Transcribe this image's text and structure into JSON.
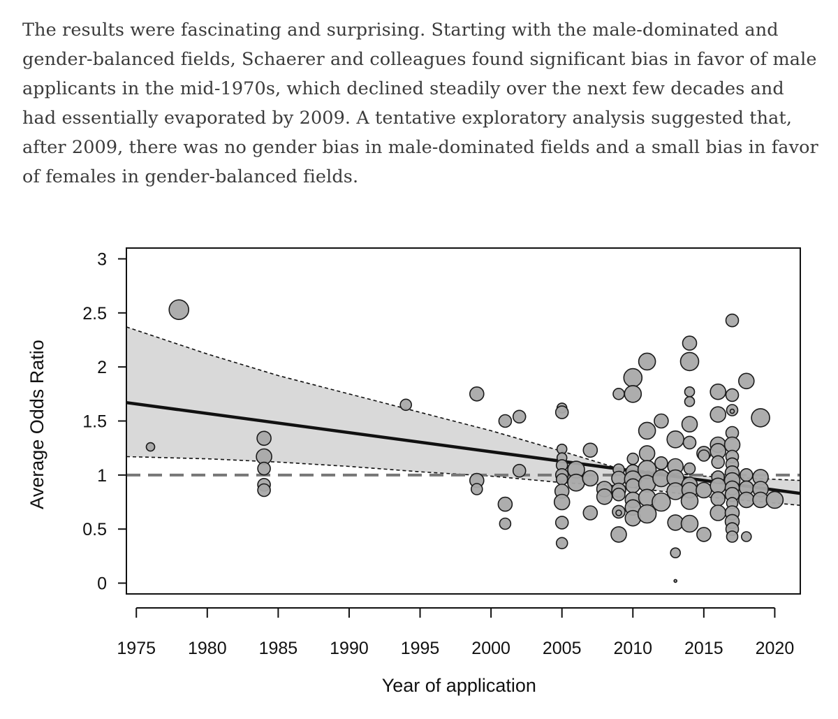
{
  "article": {
    "paragraph": "The results were fascinating and surprising. Starting with the male-dominated and gender-balanced fields, Schaerer and colleagues found significant bias in favor of male applicants in the mid-1970s, which declined steadily over the next few decades and had essentially evaporated by 2009. A tentative exploratory analysis suggested that, after 2009, there was no gender bias in male-dominated fields and a small bias in favor of females in gender-balanced fields."
  },
  "chart_data": {
    "type": "scatter",
    "xlabel": "Year of application",
    "ylabel": "Average Odds Ratio",
    "xlim": [
      1974.3,
      2021.8
    ],
    "ylim": [
      -0.1,
      3.1
    ],
    "x_ticks": [
      1975,
      1980,
      1985,
      1990,
      1995,
      2000,
      2005,
      2010,
      2015,
      2020
    ],
    "y_ticks": [
      0,
      0.5,
      1,
      1.5,
      2,
      2.5,
      3
    ],
    "y_tick_labels": [
      "0",
      "0.5",
      "1",
      "1.5",
      "2",
      "2.5",
      "3"
    ],
    "reference_line_y": 1,
    "fit_line": {
      "x": [
        1974.3,
        2021.8
      ],
      "y": [
        1.67,
        0.83
      ]
    },
    "ci_upper": {
      "x": [
        1974.3,
        1980,
        1985,
        1990,
        1995,
        2000,
        2005,
        2009,
        2015,
        2021.8
      ],
      "y": [
        2.37,
        2.12,
        1.92,
        1.75,
        1.58,
        1.41,
        1.22,
        1.06,
        0.99,
        0.95
      ]
    },
    "ci_lower": {
      "x": [
        1974.3,
        1980,
        1985,
        1990,
        1995,
        2000,
        2005,
        2009,
        2015,
        2021.8
      ],
      "y": [
        1.17,
        1.15,
        1.12,
        1.08,
        1.03,
        0.99,
        0.93,
        0.9,
        0.8,
        0.72
      ]
    },
    "colors": {
      "point_fill": "#a9a9a9",
      "point_stroke": "#1a1a1a",
      "band_fill": "#d9d9d9",
      "fit_line": "#111111",
      "ref_line": "#777777"
    },
    "points": [
      {
        "x": 1976,
        "y": 1.26,
        "size": 6
      },
      {
        "x": 1978,
        "y": 2.53,
        "size": 14
      },
      {
        "x": 1984,
        "y": 1.34,
        "size": 10
      },
      {
        "x": 1984,
        "y": 1.17,
        "size": 11
      },
      {
        "x": 1984,
        "y": 1.06,
        "size": 9
      },
      {
        "x": 1984,
        "y": 0.91,
        "size": 9
      },
      {
        "x": 1984,
        "y": 0.86,
        "size": 9
      },
      {
        "x": 1994,
        "y": 1.65,
        "size": 8
      },
      {
        "x": 1999,
        "y": 1.75,
        "size": 10
      },
      {
        "x": 1999,
        "y": 0.95,
        "size": 10
      },
      {
        "x": 1999,
        "y": 0.87,
        "size": 8
      },
      {
        "x": 2001,
        "y": 1.5,
        "size": 9
      },
      {
        "x": 2001,
        "y": 0.73,
        "size": 10
      },
      {
        "x": 2001,
        "y": 0.55,
        "size": 8
      },
      {
        "x": 2002,
        "y": 1.54,
        "size": 9
      },
      {
        "x": 2002,
        "y": 1.04,
        "size": 9
      },
      {
        "x": 2005,
        "y": 1.62,
        "size": 7
      },
      {
        "x": 2005,
        "y": 1.58,
        "size": 9
      },
      {
        "x": 2005,
        "y": 1.24,
        "size": 7
      },
      {
        "x": 2005,
        "y": 1.16,
        "size": 7
      },
      {
        "x": 2005,
        "y": 1.09,
        "size": 8
      },
      {
        "x": 2005,
        "y": 1.0,
        "size": 9
      },
      {
        "x": 2005,
        "y": 0.96,
        "size": 8
      },
      {
        "x": 2005,
        "y": 0.85,
        "size": 10
      },
      {
        "x": 2005,
        "y": 0.75,
        "size": 11
      },
      {
        "x": 2005,
        "y": 0.56,
        "size": 9
      },
      {
        "x": 2005,
        "y": 0.37,
        "size": 8
      },
      {
        "x": 2006,
        "y": 1.05,
        "size": 12
      },
      {
        "x": 2006,
        "y": 0.93,
        "size": 12
      },
      {
        "x": 2007,
        "y": 1.23,
        "size": 10
      },
      {
        "x": 2007,
        "y": 0.97,
        "size": 11
      },
      {
        "x": 2007,
        "y": 0.65,
        "size": 10
      },
      {
        "x": 2008,
        "y": 0.87,
        "size": 11
      },
      {
        "x": 2008,
        "y": 0.8,
        "size": 11
      },
      {
        "x": 2009,
        "y": 1.75,
        "size": 8
      },
      {
        "x": 2009,
        "y": 1.05,
        "size": 8
      },
      {
        "x": 2009,
        "y": 0.97,
        "size": 10
      },
      {
        "x": 2009,
        "y": 0.86,
        "size": 10
      },
      {
        "x": 2009,
        "y": 0.82,
        "size": 9
      },
      {
        "x": 2009,
        "y": 0.66,
        "size": 9
      },
      {
        "x": 2009,
        "y": 0.65,
        "size": 4
      },
      {
        "x": 2009,
        "y": 0.45,
        "size": 11
      },
      {
        "x": 2010,
        "y": 1.9,
        "size": 13
      },
      {
        "x": 2010,
        "y": 1.75,
        "size": 12
      },
      {
        "x": 2010,
        "y": 1.15,
        "size": 8
      },
      {
        "x": 2010,
        "y": 1.03,
        "size": 10
      },
      {
        "x": 2010,
        "y": 0.96,
        "size": 12
      },
      {
        "x": 2010,
        "y": 0.9,
        "size": 10
      },
      {
        "x": 2010,
        "y": 0.77,
        "size": 11
      },
      {
        "x": 2010,
        "y": 0.7,
        "size": 11
      },
      {
        "x": 2010,
        "y": 0.6,
        "size": 11
      },
      {
        "x": 2011,
        "y": 2.05,
        "size": 12
      },
      {
        "x": 2011,
        "y": 1.41,
        "size": 12
      },
      {
        "x": 2011,
        "y": 1.2,
        "size": 11
      },
      {
        "x": 2011,
        "y": 1.05,
        "size": 13
      },
      {
        "x": 2011,
        "y": 0.92,
        "size": 12
      },
      {
        "x": 2011,
        "y": 0.79,
        "size": 12
      },
      {
        "x": 2011,
        "y": 0.64,
        "size": 13
      },
      {
        "x": 2012,
        "y": 1.5,
        "size": 10
      },
      {
        "x": 2012,
        "y": 1.11,
        "size": 9
      },
      {
        "x": 2012,
        "y": 0.97,
        "size": 12
      },
      {
        "x": 2012,
        "y": 0.75,
        "size": 13
      },
      {
        "x": 2013,
        "y": 1.33,
        "size": 12
      },
      {
        "x": 2013,
        "y": 1.08,
        "size": 11
      },
      {
        "x": 2013,
        "y": 0.97,
        "size": 12
      },
      {
        "x": 2013,
        "y": 0.85,
        "size": 12
      },
      {
        "x": 2013,
        "y": 0.56,
        "size": 11
      },
      {
        "x": 2013,
        "y": 0.28,
        "size": 7
      },
      {
        "x": 2013,
        "y": 0.02,
        "size": 2
      },
      {
        "x": 2014,
        "y": 2.22,
        "size": 10
      },
      {
        "x": 2014,
        "y": 2.05,
        "size": 13
      },
      {
        "x": 2014,
        "y": 1.77,
        "size": 7
      },
      {
        "x": 2014,
        "y": 1.68,
        "size": 7
      },
      {
        "x": 2014,
        "y": 1.47,
        "size": 11
      },
      {
        "x": 2014,
        "y": 1.3,
        "size": 9
      },
      {
        "x": 2014,
        "y": 1.06,
        "size": 8
      },
      {
        "x": 2014,
        "y": 0.91,
        "size": 11
      },
      {
        "x": 2014,
        "y": 0.86,
        "size": 11
      },
      {
        "x": 2014,
        "y": 0.76,
        "size": 12
      },
      {
        "x": 2014,
        "y": 0.55,
        "size": 12
      },
      {
        "x": 2015,
        "y": 1.2,
        "size": 10
      },
      {
        "x": 2015,
        "y": 1.18,
        "size": 8
      },
      {
        "x": 2015,
        "y": 0.86,
        "size": 11
      },
      {
        "x": 2015,
        "y": 0.45,
        "size": 10
      },
      {
        "x": 2016,
        "y": 1.77,
        "size": 11
      },
      {
        "x": 2016,
        "y": 1.56,
        "size": 11
      },
      {
        "x": 2016,
        "y": 1.28,
        "size": 11
      },
      {
        "x": 2016,
        "y": 1.22,
        "size": 11
      },
      {
        "x": 2016,
        "y": 1.12,
        "size": 9
      },
      {
        "x": 2016,
        "y": 0.98,
        "size": 9
      },
      {
        "x": 2016,
        "y": 0.9,
        "size": 11
      },
      {
        "x": 2016,
        "y": 0.78,
        "size": 10
      },
      {
        "x": 2016,
        "y": 0.65,
        "size": 11
      },
      {
        "x": 2017,
        "y": 2.43,
        "size": 9
      },
      {
        "x": 2017,
        "y": 1.74,
        "size": 9
      },
      {
        "x": 2017,
        "y": 1.6,
        "size": 8
      },
      {
        "x": 2017,
        "y": 1.59,
        "size": 3
      },
      {
        "x": 2017,
        "y": 1.39,
        "size": 9
      },
      {
        "x": 2017,
        "y": 1.28,
        "size": 11
      },
      {
        "x": 2017,
        "y": 1.17,
        "size": 9
      },
      {
        "x": 2017,
        "y": 1.1,
        "size": 9
      },
      {
        "x": 2017,
        "y": 1.02,
        "size": 10
      },
      {
        "x": 2017,
        "y": 0.95,
        "size": 11
      },
      {
        "x": 2017,
        "y": 0.88,
        "size": 10
      },
      {
        "x": 2017,
        "y": 0.82,
        "size": 10
      },
      {
        "x": 2017,
        "y": 0.74,
        "size": 8
      },
      {
        "x": 2017,
        "y": 0.65,
        "size": 10
      },
      {
        "x": 2017,
        "y": 0.57,
        "size": 10
      },
      {
        "x": 2017,
        "y": 0.5,
        "size": 9
      },
      {
        "x": 2017,
        "y": 0.43,
        "size": 8
      },
      {
        "x": 2018,
        "y": 1.87,
        "size": 11
      },
      {
        "x": 2018,
        "y": 1.0,
        "size": 9
      },
      {
        "x": 2018,
        "y": 0.88,
        "size": 10
      },
      {
        "x": 2018,
        "y": 0.77,
        "size": 11
      },
      {
        "x": 2018,
        "y": 0.43,
        "size": 7
      },
      {
        "x": 2019,
        "y": 1.53,
        "size": 13
      },
      {
        "x": 2019,
        "y": 0.98,
        "size": 11
      },
      {
        "x": 2019,
        "y": 0.87,
        "size": 11
      },
      {
        "x": 2019,
        "y": 0.77,
        "size": 11
      },
      {
        "x": 2020,
        "y": 0.77,
        "size": 12
      }
    ]
  }
}
